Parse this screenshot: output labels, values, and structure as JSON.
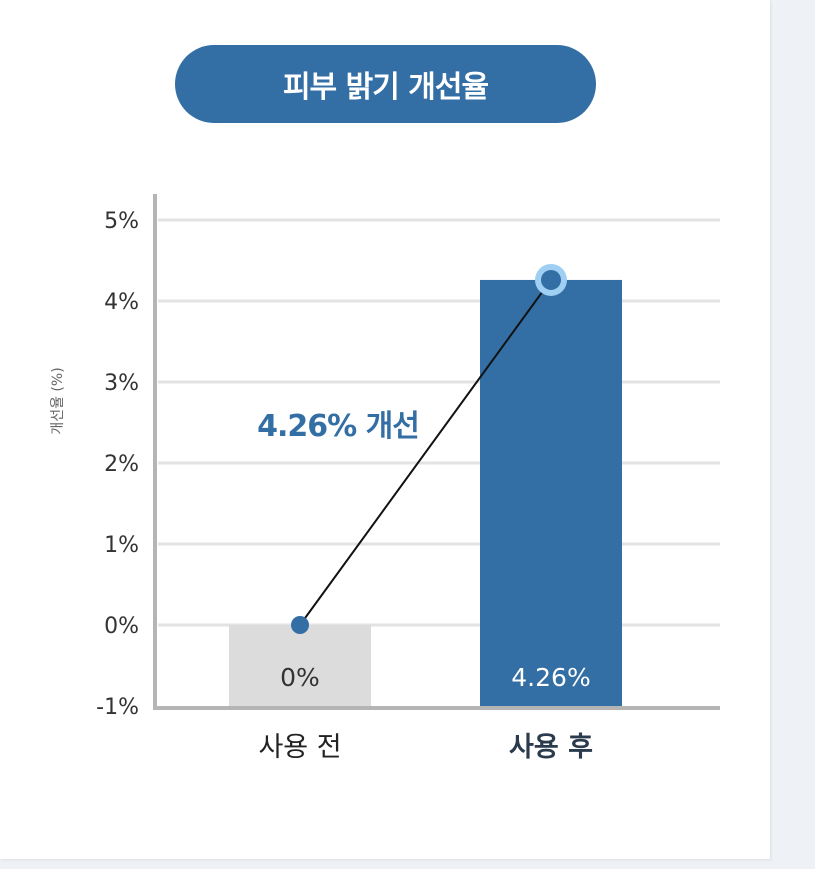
{
  "chart_data": {
    "type": "bar",
    "title": "피부 밝기 개선율",
    "ylabel": "개선율 (%)",
    "xlabel": "",
    "ylim": [
      -1,
      5
    ],
    "yticks": [
      5,
      4,
      3,
      2,
      1,
      0,
      -1
    ],
    "ytick_labels": [
      "5%",
      "4%",
      "3%",
      "2%",
      "1%",
      "0%",
      "-1%"
    ],
    "categories": [
      "사용 전",
      "사용 후"
    ],
    "values": [
      0,
      4.26
    ],
    "data_labels": [
      "0%",
      "4.26%"
    ],
    "bar_colors": [
      "#dcdcdd",
      "#336ea4"
    ],
    "grid": true,
    "annotation": "4.26% 개선",
    "accent_color": "#336ea4",
    "marker_ring_color": "#9fd0f3"
  }
}
